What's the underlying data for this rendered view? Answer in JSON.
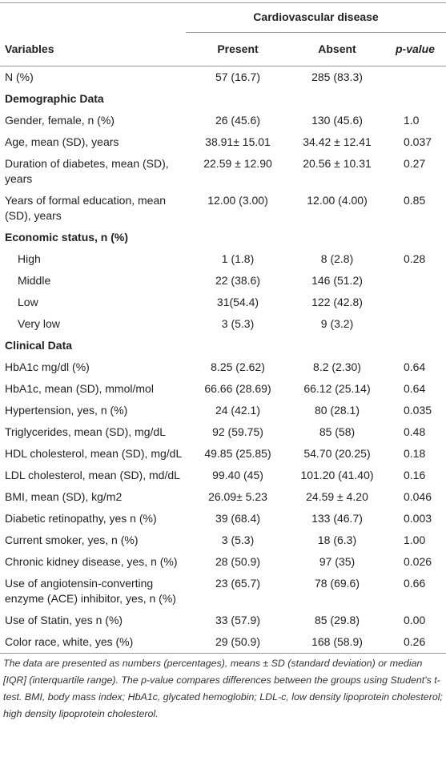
{
  "header": {
    "group": "Cardiovascular disease",
    "columns": [
      "Variables",
      "Present",
      "Absent",
      "p-value"
    ]
  },
  "rows": [
    [
      "N (%)",
      "57 (16.7)",
      "285 (83.3)",
      ""
    ]
  ],
  "sections": [
    {
      "title": "Demographic Data",
      "rows": [
        [
          "Gender, female, n (%)",
          "26 (45.6)",
          "130 (45.6)",
          "1.0"
        ],
        [
          "Age, mean (SD), years",
          "38.91± 15.01",
          "34.42 ± 12.41",
          "0.037"
        ],
        [
          "Duration of diabetes, mean (SD), years",
          "22.59 ± 12.90",
          "20.56 ± 10.31",
          "0.27"
        ],
        [
          "Years of formal education, mean (SD), years",
          "12.00 (3.00)",
          "12.00 (4.00)",
          "0.85"
        ]
      ]
    },
    {
      "title": "Economic status, n (%)",
      "rows": [
        [
          "High",
          "1 (1.8)",
          "8 (2.8)",
          "0.28"
        ],
        [
          "Middle",
          "22 (38.6)",
          "146 (51.2)",
          ""
        ],
        [
          "Low",
          "31(54.4)",
          "122 (42.8)",
          ""
        ],
        [
          "Very low",
          "3 (5.3)",
          "9 (3.2)",
          ""
        ]
      ]
    },
    {
      "title": "Clinical Data",
      "rows": [
        [
          "HbA1c mg/dl (%)",
          "8.25 (2.62)",
          "8.2 (2.30)",
          "0.64"
        ],
        [
          "HbA1c, mean (SD), mmol/mol",
          "66.66 (28.69)",
          "66.12 (25.14)",
          "0.64"
        ],
        [
          "Hypertension, yes, n (%)",
          "24 (42.1)",
          "80 (28.1)",
          "0.035"
        ],
        [
          "Triglycerides, mean (SD), mg/dL",
          "92 (59.75)",
          "85 (58)",
          "0.48"
        ],
        [
          "HDL cholesterol, mean (SD), mg/dL",
          "49.85 (25.85)",
          "54.70 (20.25)",
          "0.18"
        ],
        [
          "LDL cholesterol, mean (SD), md/dL",
          "99.40 (45)",
          "101.20 (41.40)",
          "0.16"
        ],
        [
          "BMI, mean (SD), kg/m2",
          "26.09± 5.23",
          "24.59 ± 4.20",
          "0.046"
        ],
        [
          "Diabetic retinopathy, yes n (%)",
          "39 (68.4)",
          "133 (46.7)",
          "0.003"
        ],
        [
          "Current smoker, yes, n (%)",
          "3 (5.3)",
          "18 (6.3)",
          "1.00"
        ],
        [
          "Chronic kidney disease, yes, n (%)",
          "28 (50.9)",
          "97 (35)",
          "0.026"
        ],
        [
          "Use of angiotensin-converting enzyme (ACE) inhibitor, yes, n (%)",
          "23 (65.7)",
          "78 (69.6)",
          "0.66"
        ],
        [
          "Use of Statin, yes n (%)",
          "33 (57.9)",
          "85 (29.8)",
          "0.00"
        ],
        [
          "Color race, white, yes (%)",
          "29 (50.9)",
          "168 (58.9)",
          "0.26"
        ]
      ]
    }
  ],
  "footnote": "The data are presented as numbers (percentages), means ± SD (standard deviation) or median [IQR] (interquartile range). The p-value compares differences between the groups using Student's t-test. BMI, body mass index; HbA1c, glycated hemoglobin; LDL-c, low density lipoprotein cholesterol; high density lipoprotein cholesterol."
}
